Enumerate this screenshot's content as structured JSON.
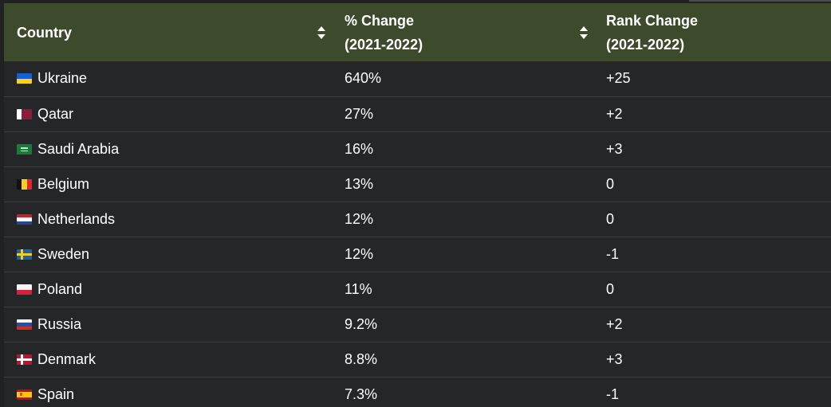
{
  "table": {
    "headers": {
      "country": "Country",
      "change_line1": "% Change",
      "change_line2": "(2021-2022)",
      "rank_line1": "Rank Change",
      "rank_line2": "(2021-2022)"
    },
    "rows": [
      {
        "country": "Ukraine",
        "flag": "ukraine-flag",
        "change": "640%",
        "rank": "+25"
      },
      {
        "country": "Qatar",
        "flag": "qatar-flag",
        "change": "27%",
        "rank": "+2"
      },
      {
        "country": "Saudi Arabia",
        "flag": "saudi-arabia-flag",
        "change": "16%",
        "rank": "+3"
      },
      {
        "country": "Belgium",
        "flag": "belgium-flag",
        "change": "13%",
        "rank": "0"
      },
      {
        "country": "Netherlands",
        "flag": "netherlands-flag",
        "change": "12%",
        "rank": "0"
      },
      {
        "country": "Sweden",
        "flag": "sweden-flag",
        "change": "12%",
        "rank": "-1"
      },
      {
        "country": "Poland",
        "flag": "poland-flag",
        "change": "11%",
        "rank": "0"
      },
      {
        "country": "Russia",
        "flag": "russia-flag",
        "change": "9.2%",
        "rank": "+2"
      },
      {
        "country": "Denmark",
        "flag": "denmark-flag",
        "change": "8.8%",
        "rank": "+3"
      },
      {
        "country": "Spain",
        "flag": "spain-flag",
        "change": "7.3%",
        "rank": "-1"
      }
    ]
  },
  "colors": {
    "header_bg": "#3e4a2c",
    "row_bg": "#242628",
    "divider": "#3b3e41",
    "text": "#ffffff"
  }
}
